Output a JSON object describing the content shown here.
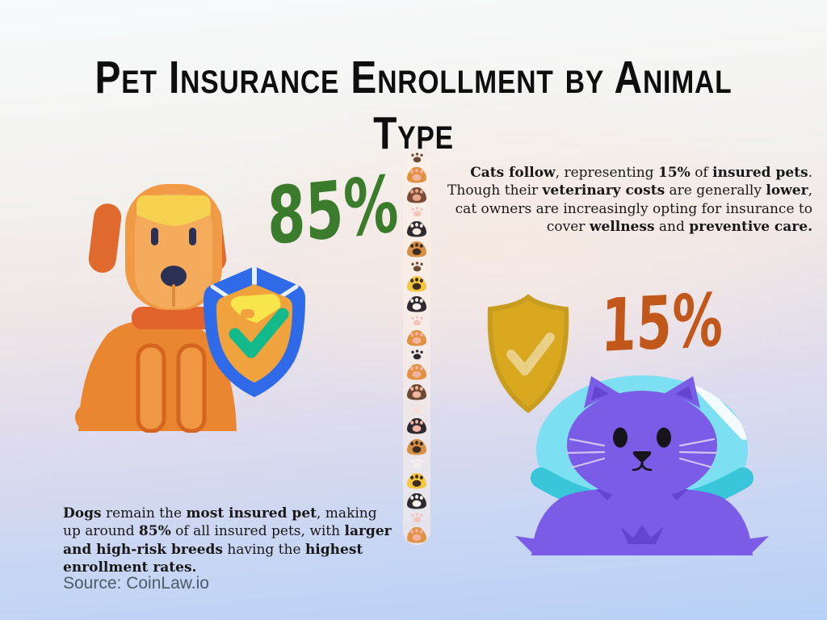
{
  "chart_data": {
    "type": "pie",
    "title": "Pet Insurance Enrollment by Animal Type",
    "categories": [
      "Dogs",
      "Cats"
    ],
    "values": [
      85,
      15
    ],
    "unit": "%",
    "legend_position": "none",
    "layout": "pictogram infographic: insured dog with blue shield on left (85%, green), cat in cone with gold shield on right (15%, orange), vertical paw-print divider in middle"
  },
  "title": "Pet Insurance Enrollment by Animal Type",
  "title_lines": [
    "Pet Insurance Enrollment by Animal",
    "Type"
  ],
  "dog": {
    "percent": "85%",
    "description_segments": [
      {
        "text": "Dogs",
        "bold": true
      },
      {
        "text": " remain the ",
        "bold": false
      },
      {
        "text": "most insured pet",
        "bold": true
      },
      {
        "text": ", making up around ",
        "bold": false
      },
      {
        "text": "85%",
        "bold": true
      },
      {
        "text": " of all insured pets, with ",
        "bold": false
      },
      {
        "text": "larger and high-risk breeds",
        "bold": true
      },
      {
        "text": " having the ",
        "bold": false
      },
      {
        "text": "highest enrollment rates.",
        "bold": true
      }
    ]
  },
  "cat": {
    "percent": "15%",
    "description_segments": [
      {
        "text": "Cats follow",
        "bold": true
      },
      {
        "text": ", representing ",
        "bold": false
      },
      {
        "text": "15%",
        "bold": true
      },
      {
        "text": " of ",
        "bold": false
      },
      {
        "text": "insured pets",
        "bold": true
      },
      {
        "text": ". Though their ",
        "bold": false
      },
      {
        "text": "veterinary costs",
        "bold": true
      },
      {
        "text": " are generally ",
        "bold": false
      },
      {
        "text": "lower",
        "bold": true
      },
      {
        "text": ", cat owners are increasingly opting for insurance to cover ",
        "bold": false
      },
      {
        "text": "wellness",
        "bold": true
      },
      {
        "text": " and ",
        "bold": false
      },
      {
        "text": "preventive care.",
        "bold": true
      }
    ]
  },
  "source": "Source: CoinLaw.io",
  "colors": {
    "dog_percent": "#3b7c2c",
    "cat_percent": "#c2571b",
    "title_text": "#0e0e0e",
    "body_text": "#181818",
    "source_text": "#4e5a68",
    "dog_fur": "#f09a45",
    "dog_fur_light": "#f4ab5c",
    "dog_body": "#ea862f",
    "dog_ear": "#e06a2e",
    "dog_head_patch": "#f6d04f",
    "dog_collar": "#e2622b",
    "shield_blue": "#2f6be8",
    "shield_gold_inner": "#f0a23c",
    "shield_gold_highlight": "#f8e44b",
    "check_green": "#12b98a",
    "cat_fur": "#7a5ce6",
    "cat_fur_dark": "#6345d0",
    "cone_fill": "#7ddff2",
    "cone_rim": "#39c6db",
    "gold_shield": "#d9a81f",
    "gold_shield_check": "#ead086"
  },
  "paws": [
    {
      "type": "small",
      "color": "#6d4a33"
    },
    {
      "type": "large",
      "color": "#e29140",
      "pad": "#f2b3a0"
    },
    {
      "type": "large",
      "color": "#7b4b34",
      "pad": "#e8a78c"
    },
    {
      "type": "small",
      "color": "#f2c4ba"
    },
    {
      "type": "large",
      "color": "#2e2b30",
      "pad": "#f6ebe4"
    },
    {
      "type": "large",
      "color": "#d79043",
      "pad": "#3d2d20"
    },
    {
      "type": "small",
      "color": "#6d4a33"
    },
    {
      "type": "large",
      "color": "#f3c741",
      "pad": "#3d2d20"
    },
    {
      "type": "large",
      "color": "#2e2b30",
      "pad": "#f6f1ec"
    },
    {
      "type": "small",
      "color": "#f2c4ba"
    },
    {
      "type": "large",
      "color": "#e29140",
      "pad": "#f2b3a0"
    },
    {
      "type": "small",
      "color": "#2e2b30"
    },
    {
      "type": "large",
      "color": "#e29140",
      "pad": "#f2b3a0"
    },
    {
      "type": "large",
      "color": "#6d4a33",
      "pad": "#f2b3a0"
    },
    {
      "type": "small",
      "color": "#f7ded6"
    },
    {
      "type": "large",
      "color": "#2e2b30",
      "pad": "#f2b3a0"
    },
    {
      "type": "large",
      "color": "#d79043",
      "pad": "#3d2d20"
    },
    {
      "type": "small",
      "color": "#f3efec"
    },
    {
      "type": "large",
      "color": "#f3c741",
      "pad": "#3d2d20"
    },
    {
      "type": "large",
      "color": "#2e2b30",
      "pad": "#f6f1ec"
    },
    {
      "type": "small",
      "color": "#f2c4ba"
    },
    {
      "type": "large",
      "color": "#e29140",
      "pad": "#f2b3a0"
    }
  ]
}
